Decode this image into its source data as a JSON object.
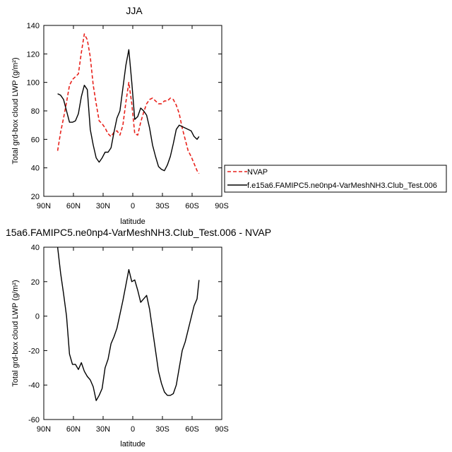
{
  "chart_data": [
    {
      "type": "line",
      "title": "JJA",
      "xlabel": "latitude",
      "ylabel": "Total grd-box cloud LWP (g/m²)",
      "xlim": [
        90,
        -90
      ],
      "ylim": [
        20,
        140
      ],
      "x_ticks": [
        90,
        60,
        30,
        0,
        -30,
        -60,
        -90
      ],
      "x_tick_labels": [
        "90N",
        "60N",
        "30N",
        "0",
        "30S",
        "60S",
        "90S"
      ],
      "y_ticks": [
        20,
        40,
        60,
        80,
        100,
        120,
        140
      ],
      "legend": {
        "placement": "right"
      },
      "series": [
        {
          "name": "NVAP",
          "color": "#e8211b",
          "dash": true,
          "x": [
            76,
            73,
            70,
            67,
            64,
            61,
            58,
            55,
            52,
            49,
            46,
            43,
            40,
            37,
            34,
            31,
            28,
            25,
            22,
            19,
            16,
            13,
            10,
            7,
            4,
            1,
            -2,
            -5,
            -8,
            -11,
            -14,
            -17,
            -20,
            -23,
            -26,
            -29,
            -32,
            -35,
            -38,
            -41,
            -44,
            -47,
            -50,
            -53,
            -56,
            -59,
            -62,
            -65,
            -67
          ],
          "values": [
            52,
            65,
            75,
            86,
            98,
            102,
            104,
            106,
            121,
            134,
            130,
            118,
            98,
            85,
            73,
            71,
            68,
            64,
            62,
            65,
            66,
            63,
            70,
            86,
            100,
            85,
            64,
            63,
            72,
            79,
            85,
            88,
            89,
            87,
            85,
            85,
            87,
            87,
            89,
            88,
            84,
            78,
            68,
            60,
            52,
            48,
            43,
            38,
            36
          ]
        },
        {
          "name": "f.e15a6.FAMIPC5.ne0np4-VarMeshNH3.Club_Test.006",
          "color": "#000000",
          "dash": false,
          "x": [
            76,
            73,
            70,
            67,
            64,
            61,
            58,
            55,
            52,
            49,
            46,
            43,
            40,
            37,
            34,
            31,
            28,
            25,
            22,
            19,
            16,
            13,
            10,
            7,
            4,
            1,
            -2,
            -5,
            -8,
            -11,
            -14,
            -17,
            -20,
            -23,
            -26,
            -29,
            -32,
            -35,
            -38,
            -41,
            -44,
            -47,
            -50,
            -53,
            -56,
            -59,
            -62,
            -65,
            -67
          ],
          "values": [
            92,
            91,
            88,
            80,
            72,
            72,
            73,
            78,
            90,
            98,
            95,
            67,
            56,
            47,
            44,
            47,
            51,
            51,
            54,
            65,
            75,
            80,
            96,
            112,
            123,
            100,
            74,
            76,
            82,
            80,
            77,
            68,
            56,
            48,
            41,
            39,
            38,
            42,
            48,
            57,
            67,
            70,
            69,
            68,
            67,
            66,
            62,
            60,
            62
          ]
        }
      ]
    },
    {
      "type": "line",
      "title": "15a6.FAMIPC5.ne0np4-VarMeshNH3.Club_Test.006 - NVAP",
      "xlabel": "latitude",
      "ylabel": "Total grd-box cloud LWP (g/m²)",
      "xlim": [
        90,
        -90
      ],
      "ylim": [
        -60,
        40
      ],
      "x_ticks": [
        90,
        60,
        30,
        0,
        -30,
        -60,
        -90
      ],
      "x_tick_labels": [
        "90N",
        "60N",
        "30N",
        "0",
        "30S",
        "60S",
        "90S"
      ],
      "y_ticks": [
        -60,
        -40,
        -20,
        0,
        20,
        40
      ],
      "series": [
        {
          "color": "#000000",
          "dash": false,
          "x": [
            76,
            73,
            70,
            67,
            64,
            61,
            58,
            55,
            52,
            49,
            46,
            43,
            40,
            37,
            34,
            31,
            28,
            25,
            22,
            19,
            16,
            13,
            10,
            7,
            4,
            1,
            -2,
            -5,
            -8,
            -11,
            -14,
            -17,
            -20,
            -23,
            -26,
            -29,
            -32,
            -35,
            -38,
            -41,
            -44,
            -47,
            -50,
            -53,
            -56,
            -59,
            -62,
            -65,
            -67
          ],
          "values": [
            40,
            25,
            13,
            0,
            -22,
            -28,
            -28,
            -31,
            -27,
            -32,
            -35,
            -37,
            -41,
            -49,
            -46,
            -42,
            -30,
            -25,
            -16,
            -12,
            -7,
            1,
            9,
            18,
            27,
            20,
            21,
            15,
            8,
            10,
            12,
            4,
            -8,
            -20,
            -32,
            -39,
            -44,
            -46,
            -46,
            -45,
            -40,
            -30,
            -20,
            -15,
            -8,
            -1,
            6,
            10,
            21
          ]
        }
      ]
    }
  ]
}
